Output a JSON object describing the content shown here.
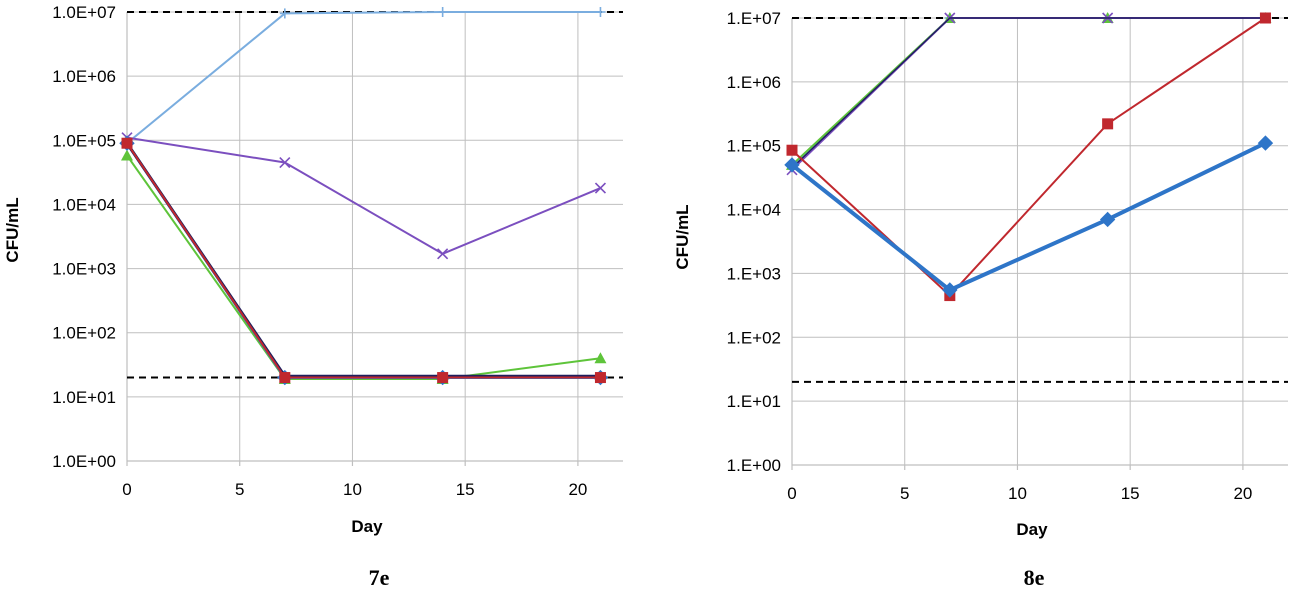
{
  "chart_data": [
    {
      "type": "line",
      "caption": "7e",
      "xlabel": "Day",
      "ylabel": "CFU/mL",
      "yscale": "log",
      "xlim": [
        0,
        22
      ],
      "ylim": [
        1,
        10000000
      ],
      "xticks": [
        "0",
        "5",
        "10",
        "15",
        "20"
      ],
      "yticks": [
        "1.0E+00",
        "1.0E+01",
        "1.0E+02",
        "1.0E+03",
        "1.0E+04",
        "1.0E+05",
        "1.0E+06",
        "1.0E+07"
      ],
      "grid": true,
      "reference_lines": [
        {
          "y": 10000000,
          "style": "dashed",
          "color": "#000000"
        },
        {
          "y": 20,
          "style": "dashed",
          "color": "#000000"
        }
      ],
      "series": [
        {
          "color": "#7aaddf",
          "marker": "plus",
          "width": 2,
          "x": [
            0,
            7,
            14,
            21
          ],
          "y": [
            90000,
            9500000,
            10000000,
            10000000
          ]
        },
        {
          "color": "#7b4fbf",
          "marker": "x",
          "width": 2,
          "x": [
            0,
            7,
            14,
            21
          ],
          "y": [
            110000,
            45000,
            1700,
            18000
          ]
        },
        {
          "color": "#5ec43a",
          "marker": "triangle",
          "width": 2,
          "x": [
            0,
            7,
            14,
            21
          ],
          "y": [
            58000,
            19,
            19,
            40
          ]
        },
        {
          "color": "#2e75c8",
          "marker": "diamond",
          "width": 3,
          "x": [
            0,
            7,
            14,
            21
          ],
          "y": [
            90000,
            20,
            20,
            20
          ]
        },
        {
          "color": "#1f1f5e",
          "marker": "none",
          "width": 3,
          "x": [
            0,
            7,
            14,
            21
          ],
          "y": [
            90000,
            21,
            21,
            21
          ]
        },
        {
          "color": "#c0282e",
          "marker": "square",
          "width": 2,
          "x": [
            0,
            7,
            14,
            21
          ],
          "y": [
            90000,
            20,
            20,
            20
          ]
        }
      ]
    },
    {
      "type": "line",
      "caption": "8e",
      "xlabel": "Day",
      "ylabel": "CFU/mL",
      "yscale": "log",
      "xlim": [
        0,
        22
      ],
      "ylim": [
        1,
        10000000
      ],
      "xticks": [
        "0",
        "5",
        "10",
        "15",
        "20"
      ],
      "yticks": [
        "1.E+00",
        "1.E+01",
        "1.E+02",
        "1.E+03",
        "1.E+04",
        "1.E+05",
        "1.E+06",
        "1.E+07"
      ],
      "grid": true,
      "reference_lines": [
        {
          "y": 10000000,
          "style": "dashed",
          "color": "#000000"
        },
        {
          "y": 20,
          "style": "dashed",
          "color": "#000000"
        }
      ],
      "series": [
        {
          "color": "#7aaddf",
          "marker": "plus",
          "width": 2,
          "x": [
            0,
            7,
            14,
            21
          ],
          "y": [
            48000,
            10000000,
            10000000,
            10000000
          ]
        },
        {
          "color": "#5ec43a",
          "marker": "triangle",
          "width": 2,
          "x": [
            0,
            7,
            14,
            21
          ],
          "y": [
            50000,
            10000000,
            10000000,
            10000000
          ]
        },
        {
          "color": "#7b4fbf",
          "marker": "x",
          "width": 2,
          "x": [
            0,
            7,
            14,
            21
          ],
          "y": [
            42000,
            10000000,
            10000000,
            10000000
          ]
        },
        {
          "color": "#1f1f5e",
          "marker": "none",
          "width": 1.5,
          "x": [
            0,
            7,
            14,
            21
          ],
          "y": [
            45000,
            10000000,
            10000000,
            10000000
          ]
        },
        {
          "color": "#c0282e",
          "marker": "square",
          "width": 2,
          "x": [
            0,
            7,
            14,
            21
          ],
          "y": [
            85000,
            450,
            220000,
            10000000
          ]
        },
        {
          "color": "#2e75c8",
          "marker": "diamond",
          "width": 4,
          "x": [
            0,
            7,
            14,
            21
          ],
          "y": [
            50000,
            550,
            7000,
            110000
          ]
        }
      ]
    }
  ]
}
